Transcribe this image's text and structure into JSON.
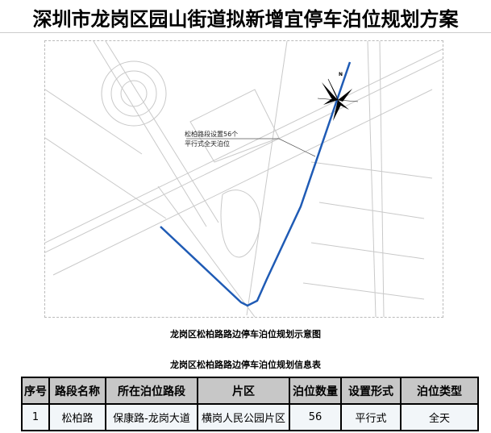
{
  "title": "深圳市龙岗区园山街道拟新增宜停车泊位规划方案",
  "map": {
    "annotation_line1": "松柏路段设置56个",
    "annotation_line2": "平行式全天泊位",
    "north_label": "N",
    "route_color": "#1f5bb5"
  },
  "map_caption": "龙岗区松柏路路边停车泊位规划示意图",
  "table_caption": "龙岗区松柏路路边停车泊位规划信息表",
  "table": {
    "headers": [
      "序号",
      "路段名称",
      "所在泊位路段",
      "片区",
      "泊位数量",
      "设置形式",
      "泊位类型"
    ],
    "rows": [
      [
        "1",
        "松柏路",
        "保康路-龙岗大道",
        "横岗人民公园片区",
        "56",
        "平行式",
        "全天"
      ]
    ]
  }
}
